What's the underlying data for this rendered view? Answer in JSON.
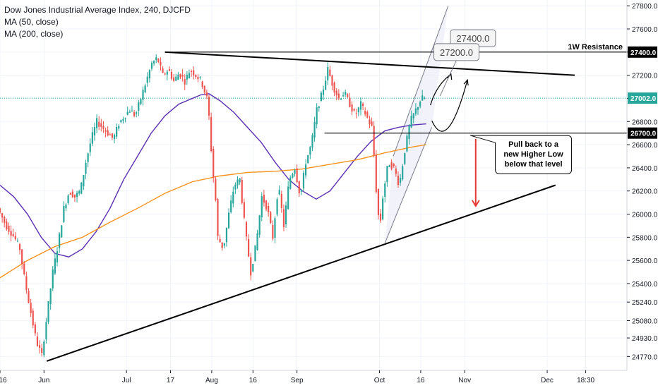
{
  "header": {
    "title": "Dow Jones Industrial Average Index, 240, DJCFD",
    "indicators": [
      "MA (50, close)",
      "MA (200, close)"
    ]
  },
  "chart_data": {
    "type": "candlestick",
    "ylim": [
      24650,
      27850
    ],
    "y_ticks": [
      27800,
      27600,
      27400,
      27200,
      27000,
      26800,
      26600,
      26400,
      26200,
      26000,
      25800,
      25600,
      25400,
      25240,
      25080,
      24930,
      24770
    ],
    "x_ticks": [
      {
        "label": "16",
        "day": 0
      },
      {
        "label": "Jun",
        "day": 16
      },
      {
        "label": "Jul",
        "day": 46
      },
      {
        "label": "17",
        "day": 62
      },
      {
        "label": "Aug",
        "day": 77
      },
      {
        "label": "16",
        "day": 92
      },
      {
        "label": "Sep",
        "day": 108
      },
      {
        "label": "Oct",
        "day": 138
      },
      {
        "label": "16",
        "day": 153
      },
      {
        "label": "Nov",
        "day": 169
      },
      {
        "label": "Dec",
        "day": 199
      },
      {
        "label": "18:30",
        "day": 213
      }
    ],
    "xlim_days": [
      0,
      228
    ],
    "last_day": 155,
    "current_price": {
      "label": "27002.0",
      "value": 27002,
      "color": "#26a69a"
    },
    "price_path": [
      {
        "day": 0,
        "price": 26050
      },
      {
        "day": 3,
        "price": 25900
      },
      {
        "day": 6,
        "price": 25800
      },
      {
        "day": 8,
        "price": 25700
      },
      {
        "day": 10,
        "price": 25400
      },
      {
        "day": 12,
        "price": 25150
      },
      {
        "day": 14,
        "price": 24900
      },
      {
        "day": 16,
        "price": 24780
      },
      {
        "day": 18,
        "price": 25150
      },
      {
        "day": 20,
        "price": 25500
      },
      {
        "day": 22,
        "price": 25750
      },
      {
        "day": 24,
        "price": 26050
      },
      {
        "day": 26,
        "price": 26200
      },
      {
        "day": 28,
        "price": 26150
      },
      {
        "day": 30,
        "price": 26200
      },
      {
        "day": 32,
        "price": 26450
      },
      {
        "day": 34,
        "price": 26650
      },
      {
        "day": 36,
        "price": 26800
      },
      {
        "day": 38,
        "price": 26750
      },
      {
        "day": 40,
        "price": 26700
      },
      {
        "day": 42,
        "price": 26650
      },
      {
        "day": 44,
        "price": 26780
      },
      {
        "day": 46,
        "price": 26850
      },
      {
        "day": 48,
        "price": 26900
      },
      {
        "day": 50,
        "price": 26850
      },
      {
        "day": 52,
        "price": 27000
      },
      {
        "day": 54,
        "price": 27150
      },
      {
        "day": 56,
        "price": 27300
      },
      {
        "day": 58,
        "price": 27350
      },
      {
        "day": 60,
        "price": 27200
      },
      {
        "day": 62,
        "price": 27250
      },
      {
        "day": 64,
        "price": 27150
      },
      {
        "day": 66,
        "price": 27220
      },
      {
        "day": 68,
        "price": 27150
      },
      {
        "day": 70,
        "price": 27250
      },
      {
        "day": 72,
        "price": 27200
      },
      {
        "day": 74,
        "price": 27150
      },
      {
        "day": 76,
        "price": 27000
      },
      {
        "day": 77,
        "price": 26800
      },
      {
        "day": 78,
        "price": 26400
      },
      {
        "day": 79,
        "price": 26200
      },
      {
        "day": 80,
        "price": 25800
      },
      {
        "day": 82,
        "price": 25700
      },
      {
        "day": 84,
        "price": 26000
      },
      {
        "day": 86,
        "price": 26250
      },
      {
        "day": 88,
        "price": 26300
      },
      {
        "day": 90,
        "price": 25850
      },
      {
        "day": 92,
        "price": 25500
      },
      {
        "day": 94,
        "price": 25750
      },
      {
        "day": 96,
        "price": 26150
      },
      {
        "day": 98,
        "price": 26050
      },
      {
        "day": 100,
        "price": 25800
      },
      {
        "day": 102,
        "price": 26250
      },
      {
        "day": 104,
        "price": 25900
      },
      {
        "day": 106,
        "price": 26300
      },
      {
        "day": 108,
        "price": 26400
      },
      {
        "day": 110,
        "price": 26150
      },
      {
        "day": 112,
        "price": 26450
      },
      {
        "day": 114,
        "price": 26600
      },
      {
        "day": 116,
        "price": 26900
      },
      {
        "day": 118,
        "price": 27050
      },
      {
        "day": 120,
        "price": 27250
      },
      {
        "day": 122,
        "price": 27100
      },
      {
        "day": 124,
        "price": 27000
      },
      {
        "day": 126,
        "price": 27050
      },
      {
        "day": 128,
        "price": 26950
      },
      {
        "day": 130,
        "price": 26850
      },
      {
        "day": 132,
        "price": 26950
      },
      {
        "day": 134,
        "price": 26850
      },
      {
        "day": 136,
        "price": 26750
      },
      {
        "day": 137,
        "price": 26450
      },
      {
        "day": 138,
        "price": 26050
      },
      {
        "day": 139,
        "price": 25900
      },
      {
        "day": 140,
        "price": 26150
      },
      {
        "day": 142,
        "price": 26450
      },
      {
        "day": 144,
        "price": 26400
      },
      {
        "day": 146,
        "price": 26250
      },
      {
        "day": 148,
        "price": 26550
      },
      {
        "day": 150,
        "price": 26800
      },
      {
        "day": 152,
        "price": 26900
      },
      {
        "day": 154,
        "price": 27000
      },
      {
        "day": 155,
        "price": 27002
      }
    ],
    "moving_averages": [
      {
        "name": "MA (50, close)",
        "color": "#5b2fb3",
        "points": [
          {
            "day": 0,
            "price": 26250
          },
          {
            "day": 5,
            "price": 26150
          },
          {
            "day": 10,
            "price": 26000
          },
          {
            "day": 15,
            "price": 25800
          },
          {
            "day": 20,
            "price": 25660
          },
          {
            "day": 25,
            "price": 25630
          },
          {
            "day": 30,
            "price": 25700
          },
          {
            "day": 35,
            "price": 25850
          },
          {
            "day": 40,
            "price": 26050
          },
          {
            "day": 45,
            "price": 26300
          },
          {
            "day": 50,
            "price": 26500
          },
          {
            "day": 55,
            "price": 26700
          },
          {
            "day": 60,
            "price": 26850
          },
          {
            "day": 65,
            "price": 26950
          },
          {
            "day": 70,
            "price": 27000
          },
          {
            "day": 73,
            "price": 27030
          },
          {
            "day": 76,
            "price": 27040
          },
          {
            "day": 80,
            "price": 26980
          },
          {
            "day": 85,
            "price": 26880
          },
          {
            "day": 90,
            "price": 26750
          },
          {
            "day": 95,
            "price": 26620
          },
          {
            "day": 100,
            "price": 26450
          },
          {
            "day": 105,
            "price": 26300
          },
          {
            "day": 110,
            "price": 26200
          },
          {
            "day": 115,
            "price": 26130
          },
          {
            "day": 120,
            "price": 26200
          },
          {
            "day": 125,
            "price": 26350
          },
          {
            "day": 130,
            "price": 26500
          },
          {
            "day": 135,
            "price": 26630
          },
          {
            "day": 140,
            "price": 26720
          },
          {
            "day": 145,
            "price": 26750
          },
          {
            "day": 150,
            "price": 26770
          },
          {
            "day": 155,
            "price": 26780
          }
        ]
      },
      {
        "name": "MA (200, close)",
        "color": "#f7931e",
        "points": [
          {
            "day": 0,
            "price": 25450
          },
          {
            "day": 10,
            "price": 25600
          },
          {
            "day": 20,
            "price": 25720
          },
          {
            "day": 30,
            "price": 25800
          },
          {
            "day": 40,
            "price": 25930
          },
          {
            "day": 50,
            "price": 26050
          },
          {
            "day": 60,
            "price": 26180
          },
          {
            "day": 70,
            "price": 26280
          },
          {
            "day": 80,
            "price": 26330
          },
          {
            "day": 90,
            "price": 26360
          },
          {
            "day": 100,
            "price": 26370
          },
          {
            "day": 110,
            "price": 26390
          },
          {
            "day": 120,
            "price": 26430
          },
          {
            "day": 130,
            "price": 26470
          },
          {
            "day": 140,
            "price": 26530
          },
          {
            "day": 150,
            "price": 26580
          },
          {
            "day": 155,
            "price": 26600
          }
        ]
      }
    ],
    "horizontal_levels": [
      {
        "name": "1W Resistance",
        "label": "1W Resistance",
        "value": 27400,
        "axis_label": "27400.0",
        "day_start": 60,
        "color": "#000000"
      },
      {
        "name": "Support",
        "label": "",
        "value": 26700,
        "axis_label": "26700.0",
        "day_start": 118,
        "color": "#000000"
      }
    ],
    "trendlines": [
      {
        "name": "falling-resistance",
        "start": {
          "day": 60,
          "price": 27400
        },
        "end": {
          "day": 209,
          "price": 27200
        }
      },
      {
        "name": "rising-support",
        "start": {
          "day": 17,
          "price": 24730
        },
        "end": {
          "day": 202,
          "price": 26250
        }
      }
    ],
    "channel": {
      "upper": [
        {
          "day": 143,
          "price": 26500
        },
        {
          "day": 163,
          "price": 27800
        }
      ],
      "lower": [
        {
          "day": 140,
          "price": 25750
        },
        {
          "day": 157,
          "price": 26750
        }
      ]
    },
    "target_boxes": [
      {
        "label": "27400.0",
        "day": 172,
        "price": 27520
      },
      {
        "label": "27200.0",
        "day": 166,
        "price": 27400
      }
    ],
    "annotation": {
      "text": [
        "Pull back to a",
        "new Higher Low",
        "below that level"
      ],
      "day": 194,
      "price": 26520
    },
    "colors": {
      "up": "#26a69a",
      "down": "#ef5350",
      "grid": "#f0f3fa",
      "axis_text": "#131722",
      "arrow_down": "#e53935",
      "channel_fill": "#e8eaf6"
    }
  }
}
